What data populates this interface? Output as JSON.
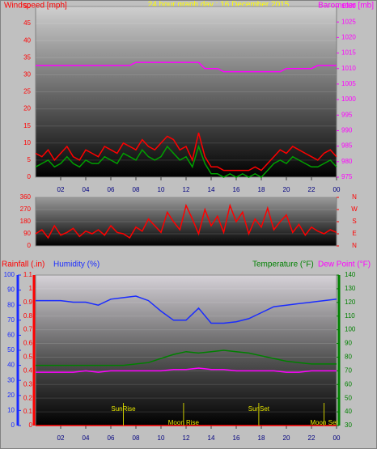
{
  "chart_data": [
    {
      "type": "line",
      "title": "24 hour graph day : 16 December 2015",
      "x": [
        0,
        0.5,
        1,
        1.5,
        2,
        2.5,
        3,
        3.5,
        4,
        4.5,
        5,
        5.5,
        6,
        6.5,
        7,
        7.5,
        8,
        8.5,
        9,
        9.5,
        10,
        10.5,
        11,
        11.5,
        12,
        12.5,
        13,
        13.5,
        14,
        14.5,
        15,
        15.5,
        16,
        16.5,
        17,
        17.5,
        18,
        18.5,
        19,
        19.5,
        20,
        20.5,
        21,
        21.5,
        22,
        22.5,
        23,
        23.5,
        24
      ],
      "xlim": [
        0,
        24
      ],
      "xticks": [
        {
          "value": 2,
          "label": "02"
        },
        {
          "value": 4,
          "label": "04"
        },
        {
          "value": 6,
          "label": "06"
        },
        {
          "value": 8,
          "label": "08"
        },
        10,
        12,
        14,
        16,
        18,
        20,
        22,
        {
          "value": 24,
          "label": "00"
        }
      ],
      "ylim": [
        0,
        50
      ],
      "yticks": [
        0,
        5,
        10,
        15,
        20,
        25,
        30,
        35,
        40,
        45,
        50
      ],
      "y2lim": [
        975,
        1030
      ],
      "y2ticks": [
        975,
        980,
        985,
        990,
        995,
        1000,
        1005,
        1010,
        1015,
        1020,
        1025,
        1030
      ],
      "series": [
        {
          "name": "Windspeed [mph]",
          "color": "#ff0000",
          "values": [
            7,
            6,
            8,
            5,
            7,
            9,
            6,
            5,
            8,
            7,
            6,
            9,
            8,
            7,
            10,
            9,
            8,
            11,
            9,
            8,
            10,
            12,
            11,
            8,
            9,
            5,
            13,
            6,
            3,
            3,
            2,
            2,
            2,
            2,
            2,
            3,
            2,
            4,
            6,
            8,
            7,
            9,
            8,
            7,
            6,
            5,
            7,
            8,
            6
          ]
        },
        {
          "color": "#00a000",
          "values": [
            3,
            4,
            5,
            3,
            4,
            6,
            4,
            3,
            5,
            4,
            4,
            6,
            5,
            4,
            7,
            6,
            5,
            8,
            6,
            5,
            6,
            9,
            7,
            5,
            6,
            3,
            9,
            4,
            1,
            1,
            0,
            1,
            0,
            1,
            0,
            1,
            0,
            2,
            4,
            5,
            4,
            6,
            5,
            4,
            3,
            3,
            4,
            5,
            3
          ]
        },
        {
          "name": "Barometer [mb]",
          "color": "#ff00ff",
          "axis": "y2",
          "values": [
            1011,
            1011,
            1011,
            1011,
            1011,
            1011,
            1011,
            1011,
            1011,
            1011,
            1011,
            1011,
            1011,
            1011,
            1011,
            1011,
            1012,
            1012,
            1012,
            1012,
            1012,
            1012,
            1012,
            1012,
            1012,
            1012,
            1012,
            1010,
            1010,
            1010,
            1009,
            1009,
            1009,
            1009,
            1009,
            1009,
            1009,
            1009,
            1009,
            1009,
            1010,
            1010,
            1010,
            1010,
            1010,
            1011,
            1011,
            1011,
            1011
          ]
        }
      ]
    },
    {
      "type": "line",
      "x": [
        0,
        0.5,
        1,
        1.5,
        2,
        2.5,
        3,
        3.5,
        4,
        4.5,
        5,
        5.5,
        6,
        6.5,
        7,
        7.5,
        8,
        8.5,
        9,
        9.5,
        10,
        10.5,
        11,
        11.5,
        12,
        12.5,
        13,
        13.5,
        14,
        14.5,
        15,
        15.5,
        16,
        16.5,
        17,
        17.5,
        18,
        18.5,
        19,
        19.5,
        20,
        20.5,
        21,
        21.5,
        22,
        22.5,
        23,
        23.5,
        24
      ],
      "xlim": [
        0,
        24
      ],
      "ylim": [
        0,
        360
      ],
      "yticks": [
        0,
        90,
        180,
        270,
        360
      ],
      "y2lim": [
        0,
        360
      ],
      "y2ticks": [
        {
          "value": 360,
          "label": "N"
        },
        {
          "value": 270,
          "label": "W"
        },
        {
          "value": 180,
          "label": "S"
        },
        {
          "value": 90,
          "label": "E"
        },
        {
          "value": 0,
          "label": "N"
        }
      ],
      "series": [
        {
          "color": "#ff0000",
          "values": [
            90,
            120,
            60,
            150,
            80,
            100,
            130,
            70,
            110,
            90,
            120,
            80,
            150,
            100,
            90,
            60,
            140,
            110,
            200,
            150,
            100,
            250,
            180,
            120,
            300,
            200,
            90,
            270,
            150,
            220,
            100,
            300,
            180,
            250,
            90,
            200,
            140,
            280,
            120,
            180,
            230,
            100,
            160,
            80,
            140,
            110,
            90,
            120,
            100
          ]
        }
      ]
    },
    {
      "type": "line",
      "x": [
        0,
        1,
        2,
        3,
        4,
        5,
        6,
        7,
        8,
        9,
        10,
        11,
        12,
        13,
        14,
        15,
        16,
        17,
        18,
        19,
        20,
        21,
        22,
        23,
        24
      ],
      "xlim": [
        0,
        24
      ],
      "xticks": [
        {
          "value": 2,
          "label": "02"
        },
        {
          "value": 4,
          "label": "04"
        },
        {
          "value": 6,
          "label": "06"
        },
        {
          "value": 8,
          "label": "08"
        },
        10,
        12,
        14,
        16,
        18,
        20,
        22,
        {
          "value": 24,
          "label": "00"
        }
      ],
      "ylim": [
        0,
        1.1
      ],
      "yticks": [
        0,
        0.1,
        0.2,
        0.3,
        0.4,
        0.5,
        0.6,
        0.7,
        0.8,
        0.9,
        1,
        1.1
      ],
      "y3lim": [
        0,
        100
      ],
      "y3ticks": [
        0,
        10,
        20,
        30,
        40,
        50,
        60,
        70,
        80,
        90,
        100
      ],
      "y2lim": [
        30,
        140
      ],
      "y2ticks": [
        30,
        40,
        50,
        60,
        70,
        80,
        90,
        100,
        110,
        120,
        130,
        140
      ],
      "series": [
        {
          "name": "Rainfall (.in)",
          "color": "#ff0000",
          "values": [
            0,
            0,
            0,
            0,
            0,
            0,
            0,
            0,
            0,
            0,
            0,
            0,
            0,
            0,
            0,
            0,
            0,
            0,
            0,
            0,
            0,
            0,
            0,
            0,
            0
          ]
        },
        {
          "name": "Humidity (%)",
          "color": "#1a2cff",
          "axis": "y3",
          "values": [
            83,
            83,
            83,
            82,
            82,
            80,
            84,
            85,
            86,
            83,
            76,
            70,
            70,
            78,
            68,
            68,
            69,
            71,
            75,
            79,
            80,
            81,
            82,
            83,
            84
          ]
        },
        {
          "name": "Temperature (°F)",
          "color": "#008000",
          "axis": "y2",
          "values": [
            74,
            74,
            74,
            74,
            74,
            74,
            74,
            74,
            75,
            76,
            79,
            82,
            84,
            83,
            84,
            85,
            84,
            83,
            81,
            79,
            77,
            76,
            75,
            75,
            75
          ]
        },
        {
          "name": "Dew Point (°F)",
          "color": "#ff00ff",
          "axis": "y2",
          "values": [
            69,
            69,
            69,
            69,
            70,
            69,
            70,
            70,
            70,
            70,
            70,
            71,
            71,
            72,
            71,
            71,
            70,
            70,
            70,
            70,
            69,
            69,
            70,
            70,
            70
          ]
        }
      ],
      "annotations": [
        {
          "x": 7,
          "text": "SunRise"
        },
        {
          "x": 11.8,
          "text": "Moon Rise"
        },
        {
          "x": 17.8,
          "text": "SunSet"
        },
        {
          "x": 23,
          "text": "Moon Set"
        }
      ]
    }
  ]
}
